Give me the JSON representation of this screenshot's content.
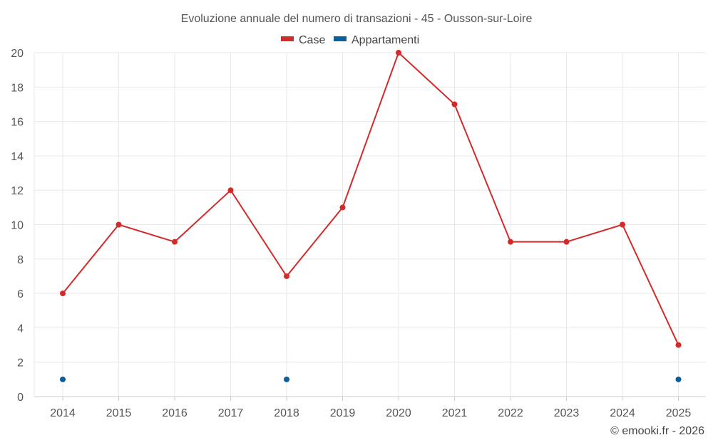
{
  "chart_data": {
    "type": "line",
    "title": "Evoluzione annuale del numero di transazioni - 45 - Ousson-sur-Loire",
    "categories": [
      "2014",
      "2015",
      "2016",
      "2017",
      "2018",
      "2019",
      "2020",
      "2021",
      "2022",
      "2023",
      "2024",
      "2025"
    ],
    "ylim": [
      0,
      20
    ],
    "yticks": [
      0,
      2,
      4,
      6,
      8,
      10,
      12,
      14,
      16,
      18,
      20
    ],
    "grid": true,
    "legend_position": "top-center",
    "series": [
      {
        "name": "Case",
        "color": "#d32a2a",
        "mode": "line+markers",
        "values": [
          6,
          10,
          9,
          12,
          7,
          11,
          20,
          17,
          9,
          9,
          10,
          3
        ]
      },
      {
        "name": "Appartamenti",
        "color": "#0a5f9c",
        "mode": "markers",
        "values": [
          1,
          null,
          null,
          null,
          1,
          null,
          null,
          null,
          null,
          null,
          null,
          1
        ]
      }
    ]
  },
  "credit": "© emooki.fr - 2026"
}
